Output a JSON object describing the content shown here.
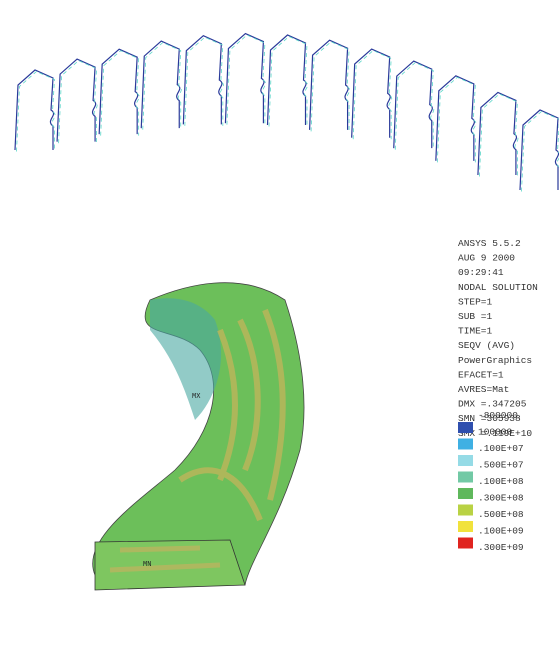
{
  "header": {
    "lines": [
      "ANSYS 5.5.2",
      "AUG  9 2000",
      "09:29:41",
      "NODAL SOLUTION",
      "STEP=1",
      "SUB =1",
      "TIME=1",
      "SEQV      (AVG)",
      "PowerGraphics",
      "EFACET=1",
      "AVRES=Mat",
      "DMX =.347205",
      "SMN =305938",
      "SMX =.119E+10"
    ]
  },
  "legend": {
    "labels": [
      "-800000",
      "100000",
      ".100E+07",
      ".500E+07",
      ".100E+08",
      ".300E+08",
      ".500E+08",
      ".100E+09",
      ".300E+09"
    ],
    "colors": [
      "#2f4fae",
      "#3fb0e3",
      "#95dbe6",
      "#72c9a5",
      "#5fb85c",
      "#b9d244",
      "#f1e23c",
      "#e0241f"
    ]
  },
  "model": {
    "max_tag": "MX",
    "min_tag": "MN"
  }
}
